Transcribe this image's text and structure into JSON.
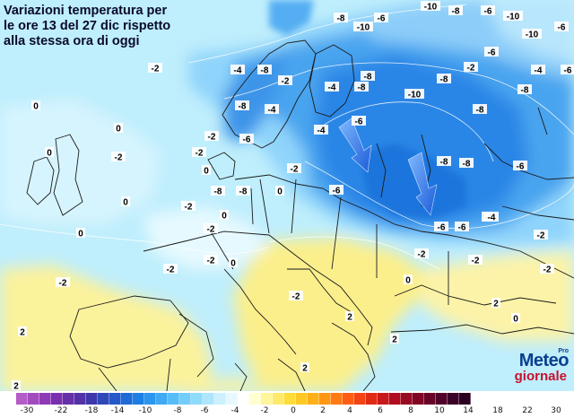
{
  "title": {
    "line1": "Variazioni temperatura per",
    "line2": "le ore 13 del 27 dic rispetto",
    "line3": "alla stessa ora di oggi"
  },
  "logo": {
    "line1": "Meteo",
    "line2": "giornale",
    "badge": "Pro"
  },
  "colorbar": {
    "tick_labels": [
      "-30",
      "-22",
      "-18",
      "-14",
      "-10",
      "-8",
      "-6",
      "-4",
      "-2",
      "0",
      "2",
      "4",
      "6",
      "8",
      "10",
      "14",
      "18",
      "22",
      "30"
    ],
    "colors": [
      "#b45cc8",
      "#a24bbf",
      "#8e3bb5",
      "#7a2fae",
      "#6630a8",
      "#5232a6",
      "#3d37ab",
      "#2f48b8",
      "#2558c8",
      "#1e6ad6",
      "#1d7fe3",
      "#2c95ee",
      "#3fa9f3",
      "#57bdf7",
      "#72cdfa",
      "#8fdbfc",
      "#aee6fd",
      "#cdf0fe",
      "#e8f8ff",
      "#ffffff",
      "#ffffd0",
      "#fff59a",
      "#ffe96a",
      "#ffdc3a",
      "#ffc824",
      "#ffb018",
      "#ff9614",
      "#ff7a12",
      "#ff5e12",
      "#f44414",
      "#e02a16",
      "#c81a1a",
      "#b00e1e",
      "#980a22",
      "#800624",
      "#680428",
      "#50022a",
      "#3c0128",
      "#2c0022"
    ]
  },
  "contour_labels": [
    "-10",
    "-8",
    "-6",
    "-10",
    "-10",
    "-8",
    "-6",
    "-10",
    "-6",
    "-6",
    "-4",
    "-6",
    "-2",
    "-4",
    "-8",
    "-8",
    "-10",
    "-8",
    "-8",
    "-2",
    "-4",
    "-8",
    "-2",
    "-8",
    "-4",
    "-8",
    "-2",
    "-6",
    "0",
    "-4",
    "-6",
    "-8",
    "-6",
    "-8",
    "-6",
    "-2",
    "-8",
    "-8",
    "-4",
    "-2",
    "0",
    "-2",
    "-2",
    "-6",
    "-6",
    "-4",
    "0",
    "-2",
    "-2",
    "-2",
    "-2",
    "-2",
    "-2",
    "-2",
    "0",
    "0",
    "0",
    "-2",
    "2",
    "2",
    "2",
    "2",
    "2",
    "0",
    "0",
    "0",
    "0",
    "0",
    "-2",
    "2"
  ]
}
